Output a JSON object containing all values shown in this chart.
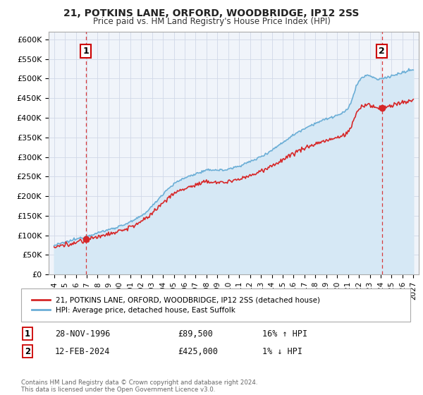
{
  "title": "21, POTKINS LANE, ORFORD, WOODBRIDGE, IP12 2SS",
  "subtitle": "Price paid vs. HM Land Registry's House Price Index (HPI)",
  "ylim": [
    0,
    620000
  ],
  "yticks": [
    0,
    50000,
    100000,
    150000,
    200000,
    250000,
    300000,
    350000,
    400000,
    450000,
    500000,
    550000,
    600000
  ],
  "ytick_labels": [
    "£0",
    "£50K",
    "£100K",
    "£150K",
    "£200K",
    "£250K",
    "£300K",
    "£350K",
    "£400K",
    "£450K",
    "£500K",
    "£550K",
    "£600K"
  ],
  "xtick_years": [
    1994,
    1995,
    1996,
    1997,
    1998,
    1999,
    2000,
    2001,
    2002,
    2003,
    2004,
    2005,
    2006,
    2007,
    2008,
    2009,
    2010,
    2011,
    2012,
    2013,
    2014,
    2015,
    2016,
    2017,
    2018,
    2019,
    2020,
    2021,
    2022,
    2023,
    2024,
    2025,
    2026,
    2027
  ],
  "sale1_date": 1996.91,
  "sale1_price": 89500,
  "sale1_label": "1",
  "sale1_text": "28-NOV-1996",
  "sale1_price_text": "£89,500",
  "sale1_hpi_text": "16% ↑ HPI",
  "sale2_date": 2024.12,
  "sale2_price": 425000,
  "sale2_label": "2",
  "sale2_text": "12-FEB-2024",
  "sale2_price_text": "£425,000",
  "sale2_hpi_text": "1% ↓ HPI",
  "hpi_line_color": "#6baed6",
  "hpi_fill_color": "#d6e8f5",
  "price_color": "#d62728",
  "dashed_line_color": "#d62728",
  "legend_label1": "21, POTKINS LANE, ORFORD, WOODBRIDGE, IP12 2SS (detached house)",
  "legend_label2": "HPI: Average price, detached house, East Suffolk",
  "footer": "Contains HM Land Registry data © Crown copyright and database right 2024.\nThis data is licensed under the Open Government Licence v3.0.",
  "marker_box_color": "#cc0000",
  "grid_color": "#d0d8e8",
  "bg_color": "#f0f4fa"
}
